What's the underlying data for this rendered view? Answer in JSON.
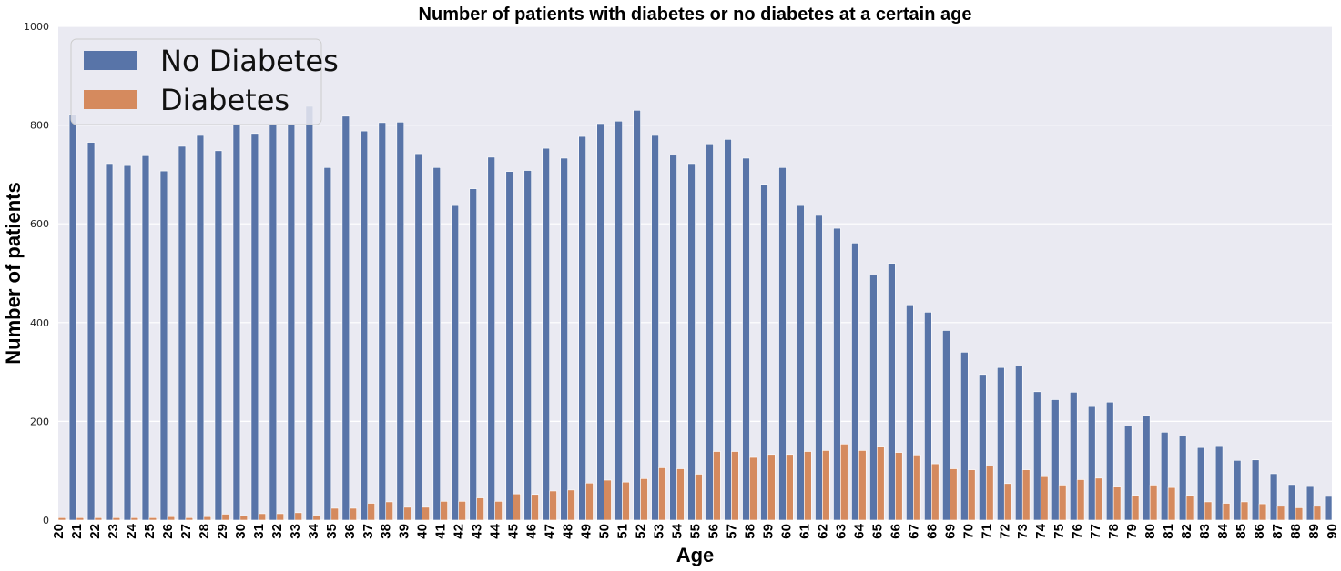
{
  "chart_data": {
    "type": "bar",
    "title": "Number of patients with diabetes or no diabetes at a certain age",
    "xlabel": "Age",
    "ylabel": "Number of patients",
    "ylim": [
      0,
      1000
    ],
    "yticks": [
      0,
      200,
      400,
      600,
      800,
      1000
    ],
    "grid": true,
    "legend_position": "top-left",
    "colors": {
      "No Diabetes": "#5874a8",
      "Diabetes": "#d58a5e",
      "plot_background": "#eaeaf2",
      "grid": "#ffffff"
    },
    "categories": [
      "20",
      "21",
      "22",
      "23",
      "24",
      "25",
      "26",
      "27",
      "28",
      "29",
      "30",
      "31",
      "32",
      "33",
      "34",
      "35",
      "36",
      "37",
      "38",
      "39",
      "40",
      "41",
      "42",
      "43",
      "44",
      "45",
      "46",
      "47",
      "48",
      "49",
      "50",
      "51",
      "52",
      "53",
      "54",
      "55",
      "56",
      "57",
      "58",
      "59",
      "60",
      "61",
      "62",
      "63",
      "64",
      "65",
      "66",
      "67",
      "68",
      "69",
      "70",
      "71",
      "72",
      "73",
      "74",
      "75",
      "76",
      "77",
      "78",
      "79",
      "80",
      "81",
      "82",
      "83",
      "84",
      "85",
      "86",
      "87",
      "88",
      "89",
      "90"
    ],
    "series": [
      {
        "name": "No Diabetes",
        "values": [
          0,
          822,
          765,
          722,
          718,
          738,
          707,
          757,
          779,
          748,
          802,
          783,
          803,
          802,
          838,
          714,
          818,
          788,
          805,
          806,
          742,
          714,
          637,
          671,
          735,
          706,
          708,
          753,
          733,
          777,
          803,
          808,
          830,
          779,
          739,
          722,
          762,
          771,
          733,
          680,
          714,
          637,
          617,
          591,
          561,
          496,
          520,
          436,
          421,
          384,
          340,
          295,
          309,
          312,
          260,
          244,
          259,
          230,
          239,
          191,
          212,
          178,
          170,
          147,
          149,
          121,
          122,
          94,
          72,
          68,
          48
        ]
      },
      {
        "name": "Diabetes",
        "values": [
          5,
          5,
          5,
          5,
          5,
          5,
          7,
          5,
          7,
          12,
          9,
          13,
          13,
          15,
          10,
          24,
          24,
          34,
          37,
          26,
          26,
          38,
          38,
          45,
          38,
          53,
          52,
          59,
          61,
          75,
          81,
          77,
          84,
          106,
          104,
          93,
          139,
          139,
          127,
          133,
          133,
          139,
          141,
          154,
          141,
          148,
          137,
          132,
          114,
          104,
          102,
          110,
          74,
          102,
          88,
          71,
          82,
          85,
          67,
          50,
          71,
          66,
          50,
          37,
          34,
          37,
          33,
          28,
          25,
          28,
          0
        ]
      }
    ]
  }
}
